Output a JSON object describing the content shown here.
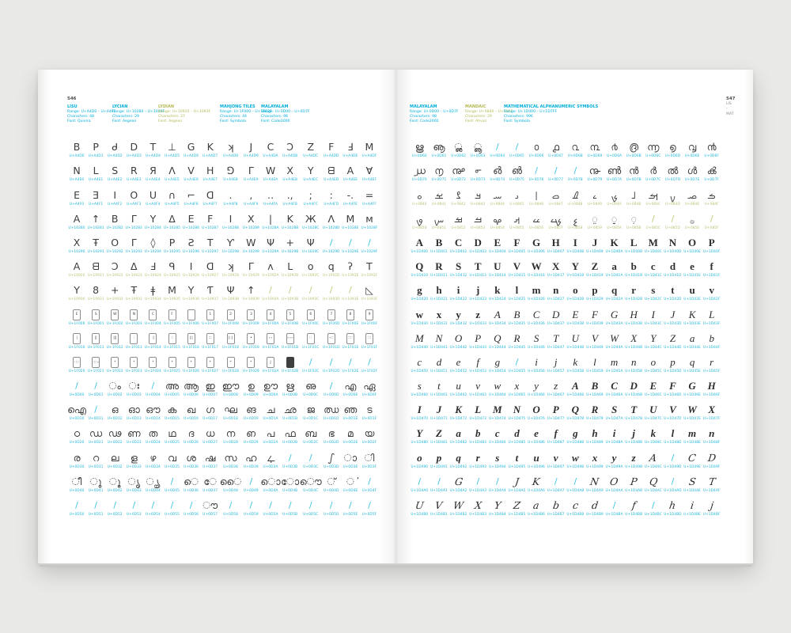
{
  "colors": {
    "cyan": "#00aeda",
    "olive": "#b3ba55",
    "glyph": "#3c3c3c"
  },
  "book": {
    "left_page": {
      "page_number": "546",
      "headers": [
        {
          "name": "LISU",
          "range": "Range: U+A4D0 – U+A4FF",
          "characters": "Characters: 48",
          "font": "Font: Quivira",
          "tone": "cyan"
        },
        {
          "name": "LYCIAN",
          "range": "Range: U+10280 – U+1029F",
          "characters": "Characters: 29",
          "font": "Font: Aegean",
          "tone": "cyan"
        },
        {
          "name": "LYDIAN",
          "range": "Range: U+10920 – U+1093F",
          "characters": "Characters: 27",
          "font": "Font: Aegean",
          "tone": "olive"
        },
        {
          "name": "MAHJONG TILES",
          "range": "Range: U+1F000 – U+1F02F",
          "characters": "Characters: 44",
          "font": "Font: Symbola",
          "tone": "cyan"
        },
        {
          "name": "MALAYALAM",
          "range": "Range: U+0D00 – U+0D7F",
          "characters": "Characters: 98",
          "font": "Font: Code2000",
          "tone": "cyan"
        }
      ],
      "rows": [
        {
          "start": "A4D0",
          "tone": "c",
          "glyphs": [
            "B",
            "P",
            "ᑯ",
            "D",
            "T",
            "⊥",
            "G",
            "K",
            "ʞ",
            "J",
            "C",
            "Ɔ",
            "Z",
            "F",
            "Ⅎ",
            "M"
          ]
        },
        {
          "start": "A4E0",
          "tone": "c",
          "glyphs": [
            "N",
            "L",
            "S",
            "R",
            "Я",
            "Λ",
            "V",
            "H",
            "⅁",
            "Γ",
            "W",
            "X",
            "Y",
            "ᗺ",
            "A",
            "Ɐ"
          ]
        },
        {
          "start": "A4F0",
          "tone": "c",
          "glyphs": [
            "E",
            "Ǝ",
            "I",
            "O",
            "U",
            "∩",
            "⌐",
            "ᗡ",
            ".",
            ",",
            "‥",
            ".,",
            ";",
            ":",
            "-.",
            "="
          ]
        },
        {
          "start": "10280",
          "tone": "c",
          "glyphs": [
            "A",
            "↑",
            "B",
            "Γ",
            "Y",
            "Δ",
            "E",
            "F",
            "I",
            "X",
            "|",
            "K",
            "Ж",
            "Λ",
            "M",
            "ᴍ"
          ]
        },
        {
          "start": "10290",
          "tone": "c",
          "glyphs": [
            "X",
            "Ŧ",
            "O",
            "Γ",
            "◊",
            "P",
            "Ƨ",
            "T",
            "Ƴ",
            "W",
            "Ψ",
            "+",
            "Ψ",
            "/",
            "/",
            "/"
          ]
        },
        {
          "start": "10920",
          "tone": "o",
          "glyphs": [
            "A",
            "ᗺ",
            "Ɔ",
            "ᐃ",
            "Ⅎ",
            "ᑫ",
            "I",
            "ᗡ",
            "ʞ",
            "ᒥ",
            "ᴧ",
            "ᒪ",
            "o",
            "q",
            "ʔ",
            "T"
          ]
        },
        {
          "start": "10930",
          "tone": "o",
          "glyphs": [
            "Y",
            "8",
            "+",
            "Ŧ",
            "ǂ",
            "M",
            "Y",
            "Ƭ",
            "Ψ",
            "↑",
            "/",
            "/",
            "/",
            "/",
            "/",
            "◺"
          ]
        },
        {
          "start": "1F000",
          "tone": "c",
          "kind": "t",
          "glyphs": [
            "E",
            "S",
            "W",
            "N",
            "C",
            "F",
            "",
            "1",
            "2",
            "3",
            "4",
            "5",
            "6",
            "7",
            "8",
            "9"
          ]
        },
        {
          "start": "1F010",
          "tone": "c",
          "kind": "t",
          "glyphs": [
            "|",
            "||",
            "|||",
            ":",
            ":|",
            "::",
            "|:|",
            ":::",
            "|::|",
            "•",
            "∘∘",
            "∘∘∘",
            "∷",
            "∘∷",
            "∷∷",
            "∷:"
          ]
        },
        {
          "start": "1F020",
          "tone": "c",
          "kind": "t",
          "glyphs": [
            "∷∷",
            "∷∷∘",
            "*",
            "*",
            "*",
            "*",
            "*",
            "*",
            "*",
            "*",
            "J",
            "#",
            "/",
            "/",
            "/",
            "/"
          ]
        },
        {
          "start": "0D00",
          "tone": "c",
          "glyphs": [
            "/",
            "/",
            "ം",
            "ഃ",
            "/",
            "അ",
            "ആ",
            "ഇ",
            "ഈ",
            "ഉ",
            "ഊ",
            "ഋ",
            "ഌ",
            "/",
            "എ",
            "ഏ"
          ]
        },
        {
          "start": "0D10",
          "tone": "c",
          "glyphs": [
            "ഐ",
            "/",
            "ഒ",
            "ഓ",
            "ഔ",
            "ക",
            "ഖ",
            "ഗ",
            "ഘ",
            "ങ",
            "ച",
            "ഛ",
            "ജ",
            "ഝ",
            "ഞ",
            "ട"
          ]
        },
        {
          "start": "0D20",
          "tone": "c",
          "glyphs": [
            "ഠ",
            "ഡ",
            "ഢ",
            "ണ",
            "ത",
            "ഥ",
            "ദ",
            "ധ",
            "ന",
            "ഩ",
            "പ",
            "ഫ",
            "ബ",
            "ഭ",
            "മ",
            "യ"
          ]
        },
        {
          "start": "0D30",
          "tone": "c",
          "glyphs": [
            "ര",
            "റ",
            "ല",
            "ള",
            "ഴ",
            "വ",
            "ശ",
            "ഷ",
            "സ",
            "ഹ",
            "ഺ",
            "/",
            "/",
            "ഽ",
            "ാ",
            "ി"
          ]
        },
        {
          "start": "0D40",
          "tone": "c",
          "glyphs": [
            "ീ",
            "ു",
            "ൂ",
            "ൃ",
            "ൄ",
            "/",
            "െ",
            "േ",
            "ൈ",
            "/",
            "ൊ",
            "ോ",
            "ൌ",
            "്",
            "ൎ",
            "/"
          ]
        },
        {
          "start": "0D50",
          "tone": "c",
          "glyphs": [
            "/",
            "/",
            "/",
            "/",
            "/",
            "/",
            "/",
            "ൗ",
            "/",
            "/",
            "/",
            "/",
            "/",
            "/",
            "/",
            "/"
          ]
        }
      ]
    },
    "right_page": {
      "page_info": {
        "number": "547",
        "from": "LIS",
        "separator": "–",
        "to": "MAT"
      },
      "headers": [
        {
          "name": "MALAYALAM",
          "range": "Range: U+0D00 – U+0D7F",
          "characters": "Characters: 98",
          "font": "Font: Code2000",
          "tone": "cyan"
        },
        {
          "name": "MANDAIC",
          "range": "Range: U+0840 – U+085F",
          "characters": "Characters: 29",
          "font": "Font: Ahvaz",
          "tone": "olive"
        },
        {
          "name": "MATHEMATICAL ALPHANUMERIC SYMBOLS",
          "range": "Range: U+1D400 – U+1D7FF",
          "characters": "Characters: 996",
          "font": "Font: Symbola",
          "tone": "cyan"
        }
      ],
      "rows": [
        {
          "start": "0D60",
          "tone": "c",
          "glyphs": [
            "ൠ",
            "ൡ",
            "ൢ",
            "ൣ",
            "/",
            "/",
            "൦",
            "൧",
            "൨",
            "൩",
            "൪",
            "൫",
            "൬",
            "൭",
            "൮",
            "൯"
          ]
        },
        {
          "start": "0D70",
          "tone": "c",
          "glyphs": [
            "൰",
            "൱",
            "൲",
            "൳",
            "൴",
            "൵",
            "/",
            "/",
            "/",
            "൹",
            "ൺ",
            "ൻ",
            "ർ",
            "ൽ",
            "ൾ",
            "ൿ"
          ]
        },
        {
          "start": "0840",
          "tone": "o",
          "glyphs": [
            "ࡀ",
            "ࡁ",
            "ࡂ",
            "ࡃ",
            "ࡄ",
            "ࡅ",
            "ࡆ",
            "ࡇ",
            "ࡈ",
            "ࡉ",
            "ࡊ",
            "ࡋ",
            "ࡌ",
            "ࡍ",
            "ࡎ",
            "ࡏ"
          ]
        },
        {
          "start": "0850",
          "tone": "o",
          "glyphs": [
            "ࡐ",
            "ࡑ",
            "ࡒ",
            "ࡓ",
            "ࡔ",
            "ࡕ",
            "ࡖ",
            "ࡗ",
            "ࡘ",
            "࡙",
            "࡚",
            "࡛",
            "/",
            "/",
            "࡞",
            "/"
          ]
        },
        {
          "start": "1D400",
          "tone": "c",
          "style": "b",
          "glyphs": [
            "A",
            "B",
            "C",
            "D",
            "E",
            "F",
            "G",
            "H",
            "I",
            "J",
            "K",
            "L",
            "M",
            "N",
            "O",
            "P"
          ]
        },
        {
          "start": "1D410",
          "tone": "c",
          "style": "b",
          "glyphs": [
            "Q",
            "R",
            "S",
            "T",
            "U",
            "V",
            "W",
            "X",
            "Y",
            "Z",
            "a",
            "b",
            "c",
            "d",
            "e",
            "f"
          ]
        },
        {
          "start": "1D420",
          "tone": "c",
          "style": "b",
          "glyphs": [
            "g",
            "h",
            "i",
            "j",
            "k",
            "l",
            "m",
            "n",
            "o",
            "p",
            "q",
            "r",
            "s",
            "t",
            "u",
            "v"
          ]
        },
        {
          "start": "1D430",
          "tone": "c",
          "styles": "bbbbiiiiiiiiiiii",
          "glyphs": [
            "w",
            "x",
            "y",
            "z",
            "A",
            "B",
            "C",
            "D",
            "E",
            "F",
            "G",
            "H",
            "I",
            "J",
            "K",
            "L"
          ]
        },
        {
          "start": "1D440",
          "tone": "c",
          "style": "i",
          "glyphs": [
            "M",
            "N",
            "O",
            "P",
            "Q",
            "R",
            "S",
            "T",
            "U",
            "V",
            "W",
            "X",
            "Y",
            "Z",
            "a",
            "b"
          ]
        },
        {
          "start": "1D450",
          "tone": "c",
          "style": "i",
          "glyphs": [
            "c",
            "d",
            "e",
            "f",
            "g",
            "/",
            "i",
            "j",
            "k",
            "l",
            "m",
            "n",
            "o",
            "p",
            "q",
            "r"
          ]
        },
        {
          "start": "1D460",
          "tone": "c",
          "styles": "iiiiiiiixxxxxxxx",
          "glyphs": [
            "s",
            "t",
            "u",
            "v",
            "w",
            "x",
            "y",
            "z",
            "A",
            "B",
            "C",
            "D",
            "E",
            "F",
            "G",
            "H"
          ]
        },
        {
          "start": "1D470",
          "tone": "c",
          "style": "x",
          "glyphs": [
            "I",
            "J",
            "K",
            "L",
            "M",
            "N",
            "O",
            "P",
            "Q",
            "R",
            "S",
            "T",
            "U",
            "V",
            "W",
            "X"
          ]
        },
        {
          "start": "1D480",
          "tone": "c",
          "style": "x",
          "glyphs": [
            "Y",
            "Z",
            "a",
            "b",
            "c",
            "d",
            "e",
            "f",
            "g",
            "h",
            "i",
            "j",
            "k",
            "l",
            "m",
            "n"
          ]
        },
        {
          "start": "1D490",
          "tone": "c",
          "styles": "xxxxxxxxxxxxssss",
          "glyphs": [
            "o",
            "p",
            "q",
            "r",
            "s",
            "t",
            "u",
            "v",
            "w",
            "x",
            "y",
            "z",
            "A",
            "/",
            "C",
            "D"
          ]
        },
        {
          "start": "1D4A0",
          "tone": "c",
          "style": "s",
          "glyphs": [
            "/",
            "/",
            "G",
            "/",
            "/",
            "J",
            "K",
            "/",
            "/",
            "N",
            "O",
            "P",
            "Q",
            "/",
            "S",
            "T"
          ]
        },
        {
          "start": "1D4B0",
          "tone": "c",
          "style": "s",
          "glyphs": [
            "U",
            "V",
            "W",
            "X",
            "Y",
            "Z",
            "a",
            "b",
            "c",
            "d",
            "/",
            "f",
            "/",
            "h",
            "i",
            "j"
          ]
        }
      ]
    }
  }
}
